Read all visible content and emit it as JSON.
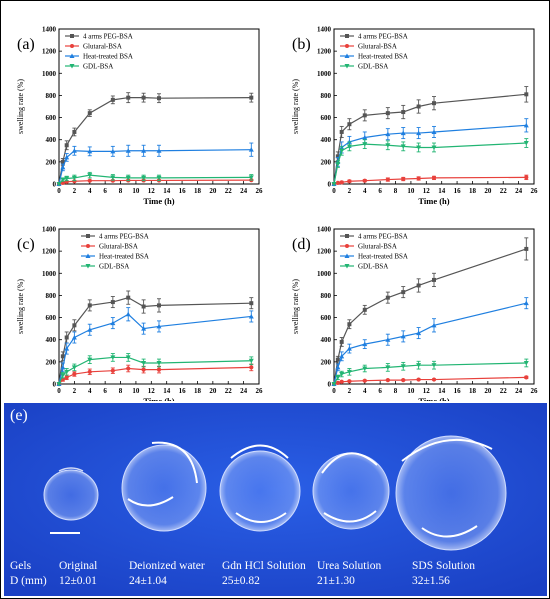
{
  "figure": {
    "panels": [
      "(a)",
      "(b)",
      "(c)",
      "(d)"
    ],
    "photo_label": "(e)"
  },
  "colors": {
    "4 arms PEG-BSA": "#555555",
    "Glutaral-BSA": "#e8413c",
    "Heat-treated BSA": "#1f7fe0",
    "GDL-BSA": "#22b573",
    "photo_background": "#1f4fd6"
  },
  "chart_data": [
    {
      "type": "line",
      "panel": "(a)",
      "xlabel": "Time (h)",
      "ylabel": "swelling rate (%)",
      "xlim": [
        0,
        26
      ],
      "ylim": [
        0,
        1400
      ],
      "xticks": [
        0,
        2,
        4,
        6,
        8,
        10,
        12,
        14,
        16,
        18,
        20,
        22,
        24,
        26
      ],
      "yticks": [
        0,
        200,
        400,
        600,
        800,
        1000,
        1200,
        1400
      ],
      "legend": "top-left",
      "x": [
        0,
        0.5,
        1,
        2,
        4,
        7,
        9,
        11,
        13,
        25
      ],
      "series": [
        {
          "name": "4 arms PEG-BSA",
          "values": [
            0,
            200,
            350,
            470,
            640,
            760,
            780,
            780,
            775,
            780
          ],
          "err": [
            0,
            30,
            40,
            35,
            30,
            35,
            45,
            40,
            40,
            40
          ]
        },
        {
          "name": "Glutaral-BSA",
          "values": [
            0,
            10,
            20,
            25,
            30,
            30,
            32,
            32,
            32,
            35
          ],
          "err": [
            0,
            5,
            5,
            5,
            5,
            5,
            5,
            5,
            5,
            5
          ]
        },
        {
          "name": "Heat-treated BSA",
          "values": [
            0,
            150,
            240,
            300,
            295,
            295,
            300,
            300,
            300,
            310
          ],
          "err": [
            0,
            30,
            35,
            40,
            40,
            45,
            50,
            50,
            50,
            60
          ]
        },
        {
          "name": "GDL-BSA",
          "values": [
            0,
            40,
            50,
            55,
            80,
            60,
            55,
            55,
            55,
            60
          ],
          "err": [
            0,
            15,
            20,
            25,
            25,
            25,
            25,
            25,
            25,
            25
          ]
        }
      ]
    },
    {
      "type": "line",
      "panel": "(b)",
      "xlabel": "Time (h)",
      "ylabel": "swelling rate (%)",
      "xlim": [
        0,
        26
      ],
      "ylim": [
        0,
        1400
      ],
      "xticks": [
        0,
        2,
        4,
        6,
        8,
        10,
        12,
        14,
        16,
        18,
        20,
        22,
        24,
        26
      ],
      "yticks": [
        0,
        200,
        400,
        600,
        800,
        1000,
        1200,
        1400
      ],
      "legend": "top-left",
      "x": [
        0,
        0.5,
        1,
        2,
        4,
        7,
        9,
        11,
        13,
        25
      ],
      "series": [
        {
          "name": "4 arms PEG-BSA",
          "values": [
            0,
            250,
            470,
            540,
            620,
            640,
            650,
            700,
            730,
            810
          ],
          "err": [
            0,
            40,
            50,
            50,
            50,
            50,
            60,
            60,
            60,
            70
          ]
        },
        {
          "name": "Glutaral-BSA",
          "values": [
            0,
            10,
            15,
            25,
            30,
            40,
            45,
            50,
            55,
            60
          ],
          "err": [
            0,
            5,
            10,
            10,
            10,
            15,
            15,
            15,
            15,
            20
          ]
        },
        {
          "name": "Heat-treated BSA",
          "values": [
            0,
            200,
            330,
            380,
            420,
            450,
            460,
            460,
            470,
            530
          ],
          "err": [
            0,
            40,
            50,
            50,
            50,
            50,
            50,
            50,
            50,
            60
          ]
        },
        {
          "name": "GDL-BSA",
          "values": [
            0,
            180,
            300,
            340,
            360,
            350,
            340,
            330,
            330,
            370
          ],
          "err": [
            0,
            30,
            40,
            40,
            40,
            40,
            40,
            40,
            40,
            40
          ]
        }
      ]
    },
    {
      "type": "line",
      "panel": "(c)",
      "xlabel": "Time (h)",
      "ylabel": "swelling rate (%)",
      "xlim": [
        0,
        26
      ],
      "ylim": [
        0,
        1400
      ],
      "xticks": [
        0,
        2,
        4,
        6,
        8,
        10,
        12,
        14,
        16,
        18,
        20,
        22,
        24,
        26
      ],
      "yticks": [
        0,
        200,
        400,
        600,
        800,
        1000,
        1200,
        1400
      ],
      "legend": "top-right",
      "x": [
        0,
        0.5,
        1,
        2,
        4,
        7,
        9,
        11,
        13,
        25
      ],
      "series": [
        {
          "name": "4 arms PEG-BSA",
          "values": [
            0,
            250,
            420,
            530,
            710,
            740,
            780,
            700,
            710,
            730
          ],
          "err": [
            0,
            40,
            50,
            50,
            50,
            50,
            60,
            60,
            60,
            50
          ]
        },
        {
          "name": "Glutaral-BSA",
          "values": [
            0,
            40,
            60,
            90,
            110,
            120,
            140,
            130,
            130,
            150
          ],
          "err": [
            0,
            15,
            20,
            20,
            25,
            25,
            30,
            30,
            30,
            30
          ]
        },
        {
          "name": "Heat-treated BSA",
          "values": [
            0,
            150,
            320,
            420,
            490,
            550,
            630,
            500,
            520,
            610
          ],
          "err": [
            0,
            40,
            50,
            50,
            50,
            50,
            60,
            50,
            50,
            50
          ]
        },
        {
          "name": "GDL-BSA",
          "values": [
            0,
            80,
            110,
            150,
            220,
            240,
            240,
            190,
            190,
            210
          ],
          "err": [
            0,
            25,
            30,
            30,
            35,
            35,
            35,
            35,
            35,
            35
          ]
        }
      ]
    },
    {
      "type": "line",
      "panel": "(d)",
      "xlabel": "Time (h)",
      "ylabel": "swelling rate (%)",
      "xlim": [
        0,
        26
      ],
      "ylim": [
        0,
        1400
      ],
      "xticks": [
        0,
        2,
        4,
        6,
        8,
        10,
        12,
        14,
        16,
        18,
        20,
        22,
        24,
        26
      ],
      "yticks": [
        0,
        200,
        400,
        600,
        800,
        1000,
        1200,
        1400
      ],
      "legend": "top-left",
      "x": [
        0,
        0.5,
        1,
        2,
        4,
        7,
        9,
        11,
        13,
        25
      ],
      "series": [
        {
          "name": "4 arms PEG-BSA",
          "values": [
            0,
            220,
            380,
            540,
            670,
            780,
            830,
            890,
            940,
            1220
          ],
          "err": [
            0,
            30,
            40,
            40,
            40,
            50,
            50,
            60,
            60,
            100
          ]
        },
        {
          "name": "Glutaral-BSA",
          "values": [
            0,
            10,
            20,
            25,
            30,
            35,
            35,
            40,
            40,
            60
          ],
          "err": [
            0,
            5,
            5,
            5,
            5,
            5,
            5,
            5,
            5,
            10
          ]
        },
        {
          "name": "Heat-treated BSA",
          "values": [
            0,
            150,
            250,
            320,
            360,
            400,
            430,
            460,
            530,
            730
          ],
          "err": [
            0,
            30,
            40,
            40,
            40,
            50,
            50,
            50,
            60,
            50
          ]
        },
        {
          "name": "GDL-BSA",
          "values": [
            0,
            60,
            90,
            110,
            140,
            150,
            160,
            170,
            170,
            190
          ],
          "err": [
            0,
            20,
            25,
            30,
            30,
            35,
            35,
            35,
            35,
            35
          ]
        }
      ]
    }
  ],
  "photo": {
    "headers": [
      "Gels",
      "D (mm)"
    ],
    "columns": [
      {
        "name": "Original",
        "value": "12±0.01"
      },
      {
        "name": "Deionized water",
        "value": "24±1.04"
      },
      {
        "name": "Gdn HCl Solution",
        "value": "25±0.82"
      },
      {
        "name": "Urea Solution",
        "value": "21±1.30"
      },
      {
        "name": "SDS Solution",
        "value": "32±1.56"
      }
    ]
  }
}
